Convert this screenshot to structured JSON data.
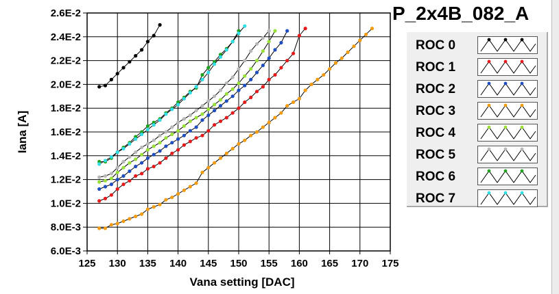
{
  "title": "P_2x4B_082_A",
  "chart_data": {
    "type": "line",
    "xlabel": "Vana setting [DAC]",
    "ylabel": "Iana [A]",
    "xlim": [
      125,
      175
    ],
    "ylim": [
      0.006,
      0.026
    ],
    "x_ticks": [
      125,
      130,
      135,
      140,
      145,
      150,
      155,
      160,
      165,
      170,
      175
    ],
    "x_tick_labels": [
      "125",
      "130",
      "135",
      "140",
      "145",
      "150",
      "155",
      "160",
      "165",
      "170",
      "175"
    ],
    "y_ticks": [
      0.006,
      0.008,
      0.01,
      0.012,
      0.014,
      0.016,
      0.018,
      0.02,
      0.022,
      0.024,
      0.026
    ],
    "y_tick_labels": [
      "6.0E-3",
      "8.0E-3",
      "1.0E-2",
      "1.2E-2",
      "1.4E-2",
      "1.6E-2",
      "1.8E-2",
      "2.0E-2",
      "2.2E-2",
      "2.4E-2",
      "2.6E-2"
    ],
    "grid": true,
    "legend_position": "right",
    "series": [
      {
        "name": "ROC 0",
        "color": "#000000",
        "line_color": "#000000",
        "x": [
          127,
          128,
          129,
          130,
          131,
          132,
          133,
          134,
          135,
          136,
          137
        ],
        "y": [
          0.0198,
          0.0199,
          0.0204,
          0.0209,
          0.0214,
          0.0219,
          0.0224,
          0.0229,
          0.0236,
          0.0241,
          0.025
        ]
      },
      {
        "name": "ROC 1",
        "color": "#e41a1c",
        "line_color": "#000000",
        "x": [
          127,
          128,
          129,
          130,
          131,
          132,
          133,
          134,
          135,
          136,
          137,
          138,
          139,
          140,
          141,
          142,
          143,
          144,
          145,
          146,
          147,
          148,
          149,
          150,
          151,
          152,
          153,
          154,
          155,
          156,
          157,
          158,
          159,
          160,
          161
        ],
        "y": [
          0.0102,
          0.0104,
          0.0107,
          0.0112,
          0.0116,
          0.0119,
          0.0123,
          0.0125,
          0.0129,
          0.0131,
          0.0134,
          0.0138,
          0.0142,
          0.0145,
          0.0149,
          0.0152,
          0.0155,
          0.0157,
          0.0161,
          0.0166,
          0.0169,
          0.0172,
          0.0176,
          0.018,
          0.0185,
          0.0189,
          0.0194,
          0.0198,
          0.0204,
          0.0208,
          0.0214,
          0.022,
          0.0226,
          0.0241,
          0.0247
        ]
      },
      {
        "name": "ROC 2",
        "color": "#1f4fbf",
        "line_color": "#000000",
        "x": [
          127,
          128,
          129,
          130,
          131,
          132,
          133,
          134,
          135,
          136,
          137,
          138,
          139,
          140,
          141,
          142,
          143,
          144,
          145,
          146,
          147,
          148,
          149,
          150,
          151,
          152,
          153,
          154,
          155,
          156,
          157,
          158
        ],
        "y": [
          0.0112,
          0.0114,
          0.0116,
          0.012,
          0.0123,
          0.0127,
          0.0131,
          0.0134,
          0.0138,
          0.0141,
          0.0144,
          0.0148,
          0.0151,
          0.0154,
          0.0157,
          0.0161,
          0.0164,
          0.017,
          0.0174,
          0.0178,
          0.0182,
          0.0186,
          0.019,
          0.0195,
          0.0199,
          0.0204,
          0.021,
          0.0216,
          0.0222,
          0.0229,
          0.0235,
          0.0245
        ]
      },
      {
        "name": "ROC 3",
        "color": "#f39c12",
        "line_color": "#000000",
        "x": [
          127,
          128,
          129,
          130,
          131,
          132,
          133,
          134,
          135,
          136,
          137,
          138,
          139,
          140,
          141,
          142,
          143,
          144,
          145,
          146,
          147,
          148,
          149,
          150,
          151,
          152,
          153,
          154,
          155,
          156,
          157,
          158,
          159,
          160,
          161,
          162,
          163,
          164,
          165,
          166,
          167,
          168,
          169,
          170,
          171,
          172
        ],
        "y": [
          0.0079,
          0.0079,
          0.0082,
          0.0083,
          0.0085,
          0.0087,
          0.0089,
          0.0091,
          0.0095,
          0.0097,
          0.0099,
          0.0103,
          0.0105,
          0.0108,
          0.0111,
          0.0114,
          0.0117,
          0.0126,
          0.013,
          0.0134,
          0.0138,
          0.0142,
          0.0146,
          0.015,
          0.0153,
          0.0157,
          0.016,
          0.0164,
          0.0168,
          0.0172,
          0.0176,
          0.0182,
          0.0185,
          0.0188,
          0.0195,
          0.02,
          0.0204,
          0.0208,
          0.0213,
          0.0218,
          0.0222,
          0.0227,
          0.0232,
          0.0237,
          0.0242,
          0.0247
        ]
      },
      {
        "name": "ROC 4",
        "color": "#99e03a",
        "line_color": "#000000",
        "x": [
          127,
          128,
          129,
          130,
          131,
          132,
          133,
          134,
          135,
          136,
          137,
          138,
          139,
          140,
          141,
          142,
          143,
          144,
          145,
          146,
          147,
          148,
          149,
          150,
          151,
          152,
          153,
          154,
          155,
          156
        ],
        "y": [
          0.0118,
          0.0119,
          0.0121,
          0.0126,
          0.013,
          0.0134,
          0.0137,
          0.0141,
          0.0145,
          0.0148,
          0.0151,
          0.0155,
          0.0158,
          0.0161,
          0.0165,
          0.0169,
          0.0172,
          0.0175,
          0.0179,
          0.0183,
          0.0187,
          0.0192,
          0.0196,
          0.0201,
          0.0207,
          0.0213,
          0.022,
          0.0228,
          0.0236,
          0.0245
        ]
      },
      {
        "name": "ROC 5",
        "color": "#b8b8b8",
        "line_color": "#000000",
        "x": [
          127,
          128,
          129,
          130,
          131,
          132,
          133,
          134,
          135,
          136,
          137,
          138,
          139,
          140,
          141,
          142,
          143,
          144,
          145,
          146,
          147,
          148,
          149,
          150,
          151,
          152,
          153,
          154,
          155
        ],
        "y": [
          0.0122,
          0.0123,
          0.0125,
          0.013,
          0.0135,
          0.0139,
          0.0143,
          0.0147,
          0.015,
          0.0153,
          0.0157,
          0.016,
          0.0164,
          0.0168,
          0.0171,
          0.0174,
          0.0178,
          0.0182,
          0.0186,
          0.019,
          0.0195,
          0.0201,
          0.0206,
          0.0213,
          0.022,
          0.0228,
          0.0234,
          0.0239,
          0.0245
        ]
      },
      {
        "name": "ROC 6",
        "color": "#1fa21f",
        "line_color": "#000000",
        "x": [
          127,
          128,
          129,
          130,
          131,
          132,
          133,
          134,
          135,
          136,
          137,
          138,
          139,
          140,
          141,
          142,
          143,
          144,
          145,
          146,
          147,
          148,
          149,
          150
        ],
        "y": [
          0.0135,
          0.0135,
          0.0138,
          0.0143,
          0.0147,
          0.0151,
          0.0156,
          0.016,
          0.0165,
          0.0168,
          0.0171,
          0.0176,
          0.018,
          0.0185,
          0.0189,
          0.0194,
          0.0197,
          0.0208,
          0.0214,
          0.0219,
          0.0225,
          0.023,
          0.0236,
          0.0245
        ]
      },
      {
        "name": "ROC 7",
        "color": "#33dde6",
        "line_color": "#000000",
        "x": [
          127,
          128,
          129,
          130,
          131,
          132,
          133,
          134,
          135,
          136,
          137,
          138,
          139,
          140,
          141,
          142,
          143,
          144,
          145,
          146,
          147,
          148,
          149,
          150,
          151
        ],
        "y": [
          0.0133,
          0.0136,
          0.0139,
          0.0143,
          0.0146,
          0.015,
          0.0154,
          0.0158,
          0.0162,
          0.0166,
          0.017,
          0.0175,
          0.0179,
          0.0183,
          0.0188,
          0.0193,
          0.0198,
          0.0204,
          0.021,
          0.0217,
          0.0223,
          0.0229,
          0.0236,
          0.0243,
          0.0249
        ]
      }
    ]
  }
}
